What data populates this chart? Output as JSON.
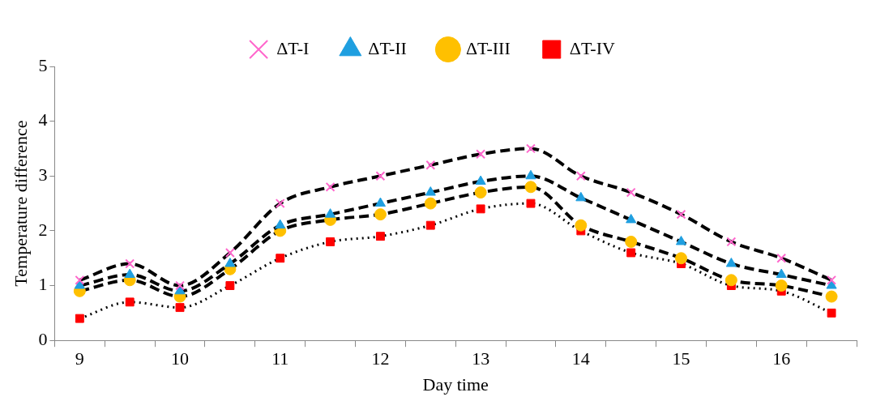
{
  "chart_data": {
    "type": "line",
    "xlabel": "Day time",
    "ylabel": "Temperature difference",
    "categories": [
      "9",
      null,
      "10",
      null,
      "11",
      null,
      "12",
      null,
      "13",
      null,
      "14",
      null,
      "15",
      null,
      "16",
      null
    ],
    "ylim": [
      0,
      5
    ],
    "yticks": [
      0,
      1,
      2,
      3,
      4,
      5
    ],
    "grid": false,
    "legend": "top",
    "series": [
      {
        "name": "ΔT-I",
        "color": "#ff66cc",
        "marker": "cross",
        "line_style": "dashed",
        "values": [
          1.1,
          1.4,
          1.0,
          1.6,
          2.5,
          2.8,
          3.0,
          3.2,
          3.4,
          3.5,
          3.0,
          2.7,
          2.3,
          1.8,
          1.5,
          1.1
        ]
      },
      {
        "name": "ΔT-II",
        "color": "#1f9fe0",
        "marker": "triangle",
        "line_style": "dashed",
        "values": [
          1.0,
          1.2,
          0.9,
          1.4,
          2.1,
          2.3,
          2.5,
          2.7,
          2.9,
          3.0,
          2.6,
          2.2,
          1.8,
          1.4,
          1.2,
          1.0
        ]
      },
      {
        "name": "ΔT-III",
        "color": "#ffc000",
        "marker": "circle",
        "line_style": "dashed",
        "values": [
          0.9,
          1.1,
          0.8,
          1.3,
          2.0,
          2.2,
          2.3,
          2.5,
          2.7,
          2.8,
          2.1,
          1.8,
          1.5,
          1.1,
          1.0,
          0.8
        ]
      },
      {
        "name": "ΔT-IV",
        "color": "#ff0000",
        "marker": "square",
        "line_style": "dotted",
        "values": [
          0.4,
          0.7,
          0.6,
          1.0,
          1.5,
          1.8,
          1.9,
          2.1,
          2.4,
          2.5,
          2.0,
          1.6,
          1.4,
          1.0,
          0.9,
          0.5
        ]
      }
    ]
  }
}
